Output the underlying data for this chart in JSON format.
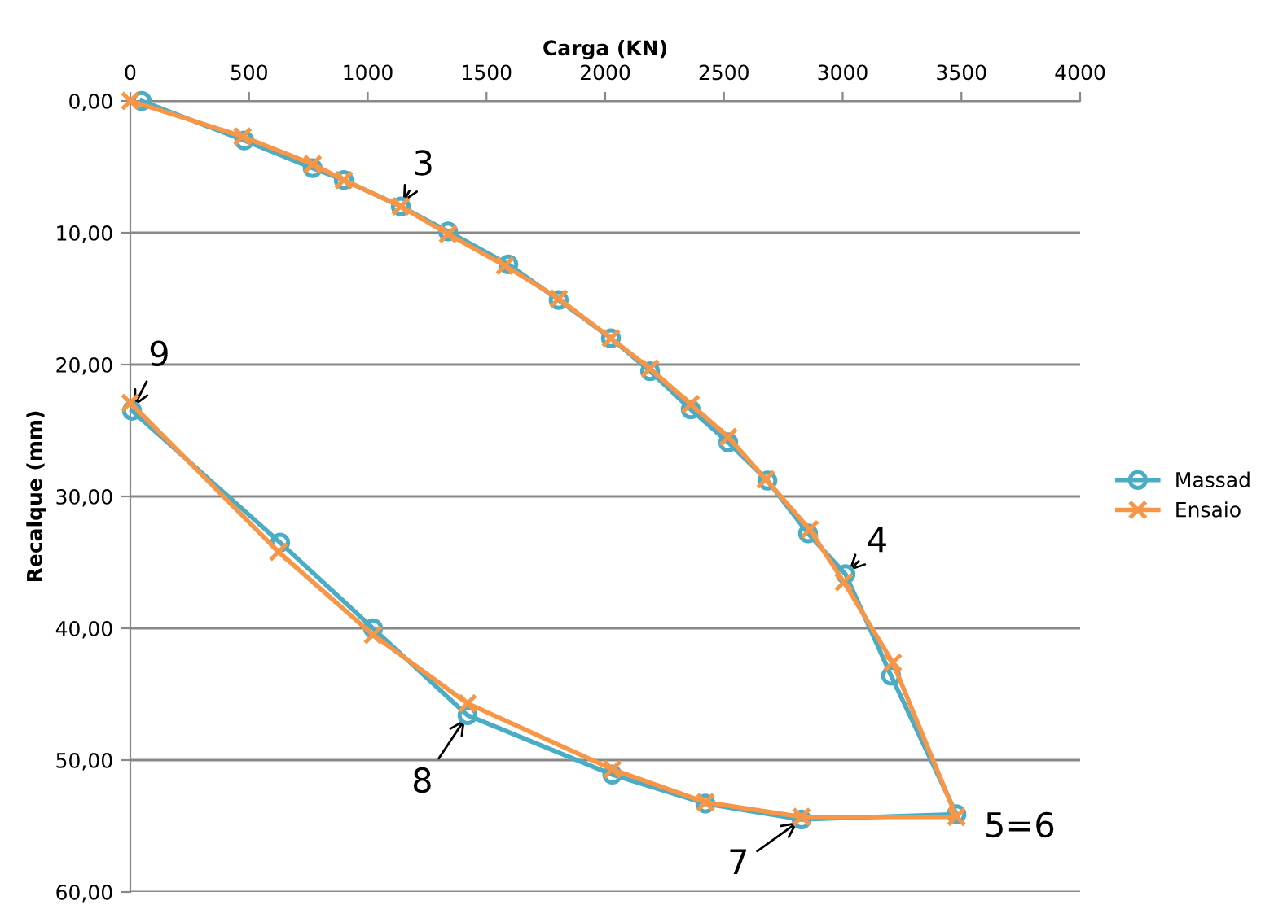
{
  "chart_data": {
    "type": "line",
    "xlabel": "Carga (KN)",
    "ylabel": "Recalque (mm)",
    "xlim": [
      0,
      4000
    ],
    "xticks": [
      0,
      500,
      1000,
      1500,
      2000,
      2500,
      3000,
      3500,
      4000
    ],
    "ylim": [
      60,
      0
    ],
    "yticks": [
      {
        "value": 0,
        "label": "0,00"
      },
      {
        "value": 10,
        "label": "10,00"
      },
      {
        "value": 20,
        "label": "20,00"
      },
      {
        "value": 30,
        "label": "30,00"
      },
      {
        "value": 40,
        "label": "40,00"
      },
      {
        "value": 50,
        "label": "50,00"
      },
      {
        "value": 60,
        "label": "60,00"
      }
    ],
    "grid": "y",
    "legend": "right",
    "series": [
      {
        "name": "Massad",
        "color": "#4bacc6",
        "marker": "circle",
        "x": [
          48,
          480,
          768,
          899,
          1139,
          1338,
          1592,
          1804,
          2024,
          2189,
          2360,
          2518,
          2683,
          2854,
          3012,
          3204,
          3479,
          2827,
          2422,
          2030,
          1420,
          1022,
          631,
          7
        ],
        "values": [
          0,
          3.0,
          5.1,
          6.0,
          8.0,
          9.9,
          12.4,
          15.1,
          18.0,
          20.5,
          23.4,
          25.9,
          28.8,
          32.8,
          35.9,
          43.6,
          54.1,
          54.5,
          53.3,
          51.1,
          46.6,
          40.0,
          33.5,
          23.5
        ]
      },
      {
        "name": "Ensaio",
        "color": "#f79646",
        "marker": "cross",
        "x": [
          0,
          473,
          768,
          899,
          1139,
          1338,
          1578,
          1804,
          2024,
          2189,
          2360,
          2518,
          2676,
          2861,
          3005,
          3211,
          3479,
          2827,
          2422,
          2030,
          1420,
          1022,
          624,
          0
        ],
        "values": [
          0,
          2.7,
          4.8,
          6.0,
          8.0,
          10.1,
          12.5,
          15.0,
          18.0,
          20.3,
          23.0,
          25.5,
          28.7,
          32.5,
          36.5,
          42.6,
          54.3,
          54.3,
          53.2,
          50.7,
          45.7,
          40.5,
          34.2,
          22.9
        ]
      }
    ],
    "annotations": [
      {
        "text": "3",
        "x": 1139,
        "y": 8.0
      },
      {
        "text": "4",
        "x": 3012,
        "y": 35.9
      },
      {
        "text": "5=6",
        "x": 3479,
        "y": 54.1
      },
      {
        "text": "7",
        "x": 2827,
        "y": 54.5
      },
      {
        "text": "8",
        "x": 1420,
        "y": 46.6
      },
      {
        "text": "9",
        "x": 7,
        "y": 23.5
      }
    ]
  }
}
